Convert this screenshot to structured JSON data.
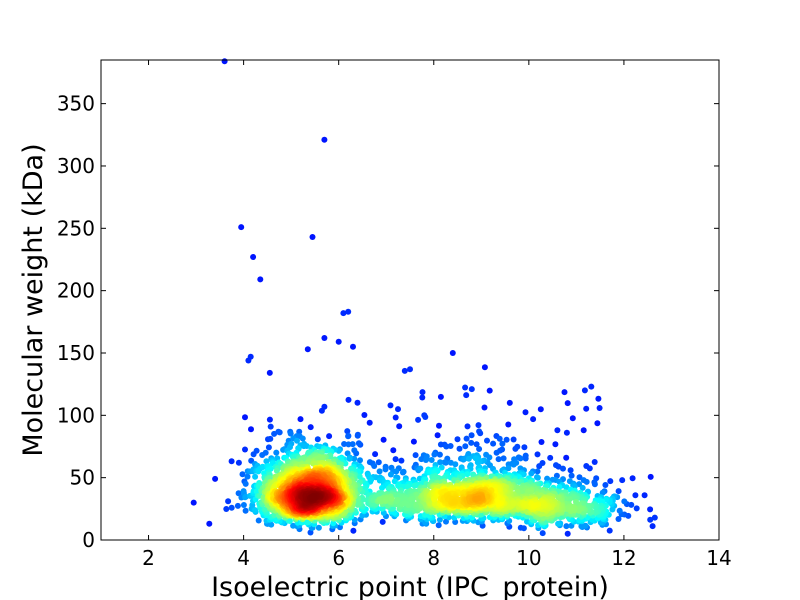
{
  "chart_data": {
    "type": "scatter",
    "title": "",
    "xlabel": "Isoelectric point (IPC_protein)",
    "ylabel": "Molecular weight (kDa)",
    "xlim": [
      1,
      14
    ],
    "ylim": [
      0,
      385
    ],
    "x_ticks": [
      2,
      4,
      6,
      8,
      10,
      12,
      14
    ],
    "y_ticks": [
      0,
      50,
      100,
      150,
      200,
      250,
      300,
      350
    ],
    "grid": false,
    "legend": "none",
    "color_encoding": "point density (jet colormap: blue = low, red = high)",
    "colors": {
      "low": "#00008f",
      "mid": "#00e5ff",
      "high_mid": "#ffee00",
      "high": "#b30000"
    },
    "density_clusters": [
      {
        "x_center": 5.4,
        "y_center": 28,
        "description": "acidic protein cluster (highest density)"
      },
      {
        "x_center": 8.8,
        "y_center": 30,
        "description": "basic protein cluster"
      },
      {
        "x_center": 10.5,
        "y_center": 22,
        "description": "highly basic protein cluster"
      }
    ],
    "outliers": [
      {
        "x": 3.6,
        "y": 384
      },
      {
        "x": 5.7,
        "y": 321
      },
      {
        "x": 3.95,
        "y": 251
      },
      {
        "x": 5.45,
        "y": 243
      },
      {
        "x": 4.2,
        "y": 227
      },
      {
        "x": 4.35,
        "y": 209
      },
      {
        "x": 6.2,
        "y": 183
      },
      {
        "x": 6.1,
        "y": 182
      },
      {
        "x": 5.7,
        "y": 162
      },
      {
        "x": 6.0,
        "y": 159
      },
      {
        "x": 6.3,
        "y": 155
      },
      {
        "x": 5.35,
        "y": 153
      },
      {
        "x": 4.15,
        "y": 147
      },
      {
        "x": 4.1,
        "y": 144
      },
      {
        "x": 8.4,
        "y": 150
      },
      {
        "x": 7.5,
        "y": 137
      },
      {
        "x": 4.55,
        "y": 134
      },
      {
        "x": 2.95,
        "y": 30
      },
      {
        "x": 3.4,
        "y": 49
      },
      {
        "x": 3.9,
        "y": 62
      },
      {
        "x": 12.65,
        "y": 18
      },
      {
        "x": 11.8,
        "y": 35
      },
      {
        "x": 10.8,
        "y": 86
      },
      {
        "x": 10.6,
        "y": 88
      },
      {
        "x": 9.6,
        "y": 110
      },
      {
        "x": 8.8,
        "y": 121
      },
      {
        "x": 7.8,
        "y": 100
      }
    ]
  }
}
